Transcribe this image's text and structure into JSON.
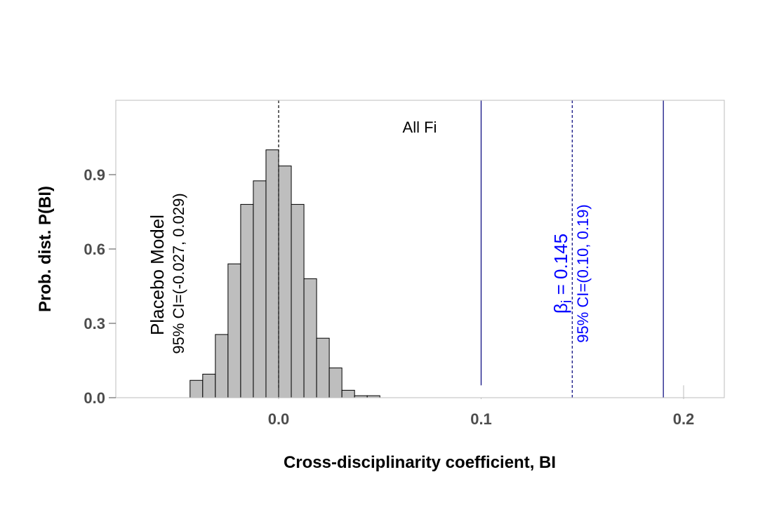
{
  "chart_data": {
    "type": "bar",
    "title": "",
    "xlabel": "Cross-disciplinarity coefficient, BI",
    "ylabel": "Prob. dist. P(BI)",
    "xlim": [
      -0.08,
      0.22
    ],
    "ylim": [
      0,
      1.2
    ],
    "x_ticks": [
      0.0,
      0.1,
      0.2
    ],
    "x_tick_labels": [
      "0.0",
      "0.1",
      "0.2"
    ],
    "y_ticks": [
      0.0,
      0.3,
      0.6,
      0.9
    ],
    "y_tick_labels": [
      "0.0",
      "0.3",
      "0.6",
      "0.9"
    ],
    "grid": false,
    "bin_width": 0.00625,
    "bins": [
      {
        "x0": -0.04375,
        "value": 0.07
      },
      {
        "x0": -0.0375,
        "value": 0.095
      },
      {
        "x0": -0.03125,
        "value": 0.255
      },
      {
        "x0": -0.025,
        "value": 0.54
      },
      {
        "x0": -0.01875,
        "value": 0.78
      },
      {
        "x0": -0.0125,
        "value": 0.875
      },
      {
        "x0": -0.00625,
        "value": 1.0
      },
      {
        "x0": 0.0,
        "value": 0.935
      },
      {
        "x0": 0.00625,
        "value": 0.78
      },
      {
        "x0": 0.0125,
        "value": 0.48
      },
      {
        "x0": 0.01875,
        "value": 0.24
      },
      {
        "x0": 0.025,
        "value": 0.12
      },
      {
        "x0": 0.03125,
        "value": 0.03
      },
      {
        "x0": 0.0375,
        "value": 0.008
      },
      {
        "x0": 0.04375,
        "value": 0.008
      }
    ],
    "reference_lines": [
      {
        "x": 0.0,
        "style": "dashed",
        "color": "#000000",
        "y_top": 1.2,
        "y_bottom": 0.04
      },
      {
        "x": 0.1,
        "style": "solid",
        "color": "#00007a",
        "y_top": 1.2,
        "y_bottom": 0.05
      },
      {
        "x": 0.145,
        "style": "dashed",
        "color": "#00007a",
        "y_top": 1.2,
        "y_bottom": 0.0
      },
      {
        "x": 0.19,
        "style": "solid",
        "color": "#00007a",
        "y_top": 1.2,
        "y_bottom": 0.0
      },
      {
        "x": 0.2,
        "style": "solid",
        "color": "#c8c8c8",
        "y_top": 0.05,
        "y_bottom": 0.0
      }
    ],
    "annotations": {
      "panel_label": "All Fi",
      "placebo_title": "Placebo Model",
      "placebo_ci": "95% CI=(-0.027, 0.029)",
      "beta_symbol": "β",
      "beta_subscript": "i",
      "beta_value": " = 0.145",
      "beta_ci": "95% CI=(0.10, 0.19)"
    },
    "colors": {
      "bar_fill": "#bebebe",
      "bar_stroke": "#000000",
      "frame": "#bebebe",
      "beta_text": "#0000ff"
    }
  }
}
